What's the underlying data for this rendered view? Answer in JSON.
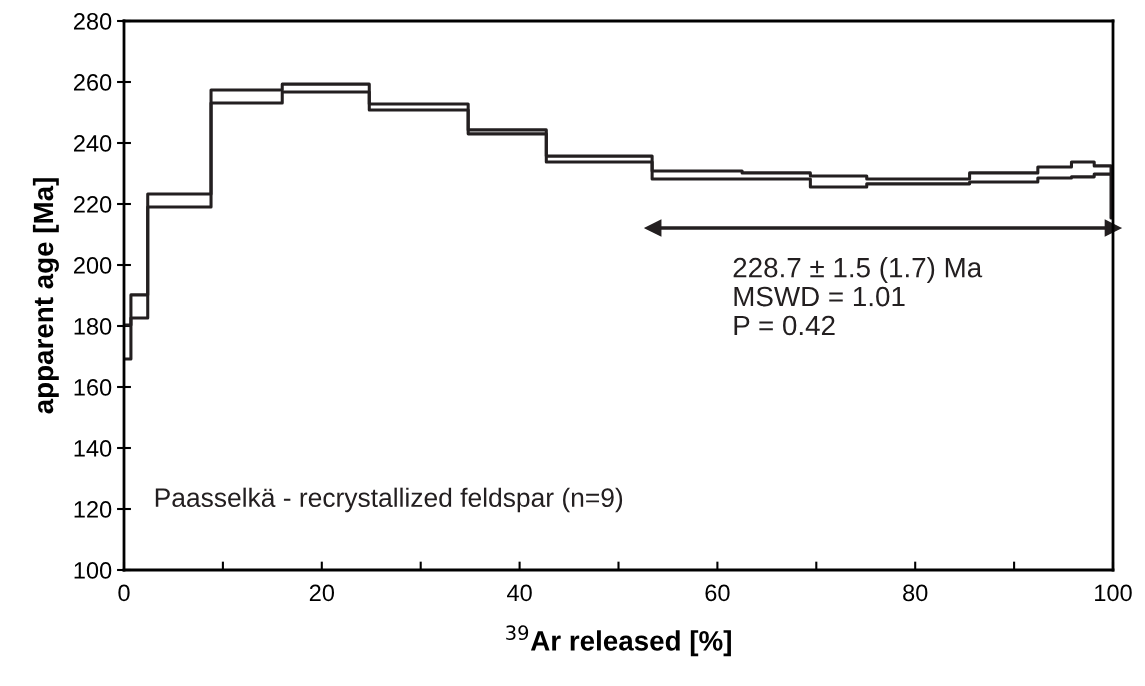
{
  "chart_data": {
    "type": "step",
    "xlabel": "$^{39}$Ar released [%]",
    "ylabel": "apparent age [Ma]",
    "xlim": [
      0,
      100
    ],
    "ylim": [
      100,
      280
    ],
    "xticks": [
      0,
      {
        "value": 10,
        "label": null
      },
      20,
      {
        "value": 30,
        "label": null
      },
      40,
      {
        "value": 50,
        "label": null
      },
      60,
      {
        "value": 70,
        "label": null
      },
      80,
      {
        "value": 90,
        "label": null
      },
      100
    ],
    "yticks": [
      100,
      120,
      140,
      160,
      180,
      200,
      220,
      240,
      260,
      280
    ],
    "x": [
      0,
      0.7,
      2.4,
      8.8,
      16.0,
      24.8,
      34.8,
      42.7,
      53.4,
      62.5,
      69.4,
      75.1,
      85.5,
      92.4,
      95.8,
      98.1,
      99.8,
      100
    ],
    "series": [
      {
        "color": "#231f20",
        "values": [
          180.3,
          190.2,
          223.3,
          257.4,
          259.3,
          252.8,
          244.3,
          235.7,
          230.8,
          230.2,
          229.2,
          228.2,
          230.2,
          232.1,
          233.8,
          232.5,
          229.8,
          229.8
        ]
      },
      {
        "color": "#231f20",
        "values": [
          169.2,
          182.6,
          219.0,
          253.1,
          256.7,
          250.8,
          243.0,
          233.8,
          228.2,
          228.2,
          225.6,
          226.6,
          227.2,
          228.5,
          228.9,
          229.8,
          215.4,
          215.4
        ]
      },
      {
        "type": "line",
        "marker": "triangle",
        "color": "#231f20",
        "x": [
          53.5,
          100
        ],
        "values": [
          212.1,
          212.1
        ]
      }
    ],
    "annotations": [
      "228.7 ± 1.5 (1.7) Ma\nMSWD = 1.01\nP = 0.42",
      "Paasselkä - recrystallized feldspar (n=9)"
    ],
    "grid": false,
    "legend": false
  }
}
